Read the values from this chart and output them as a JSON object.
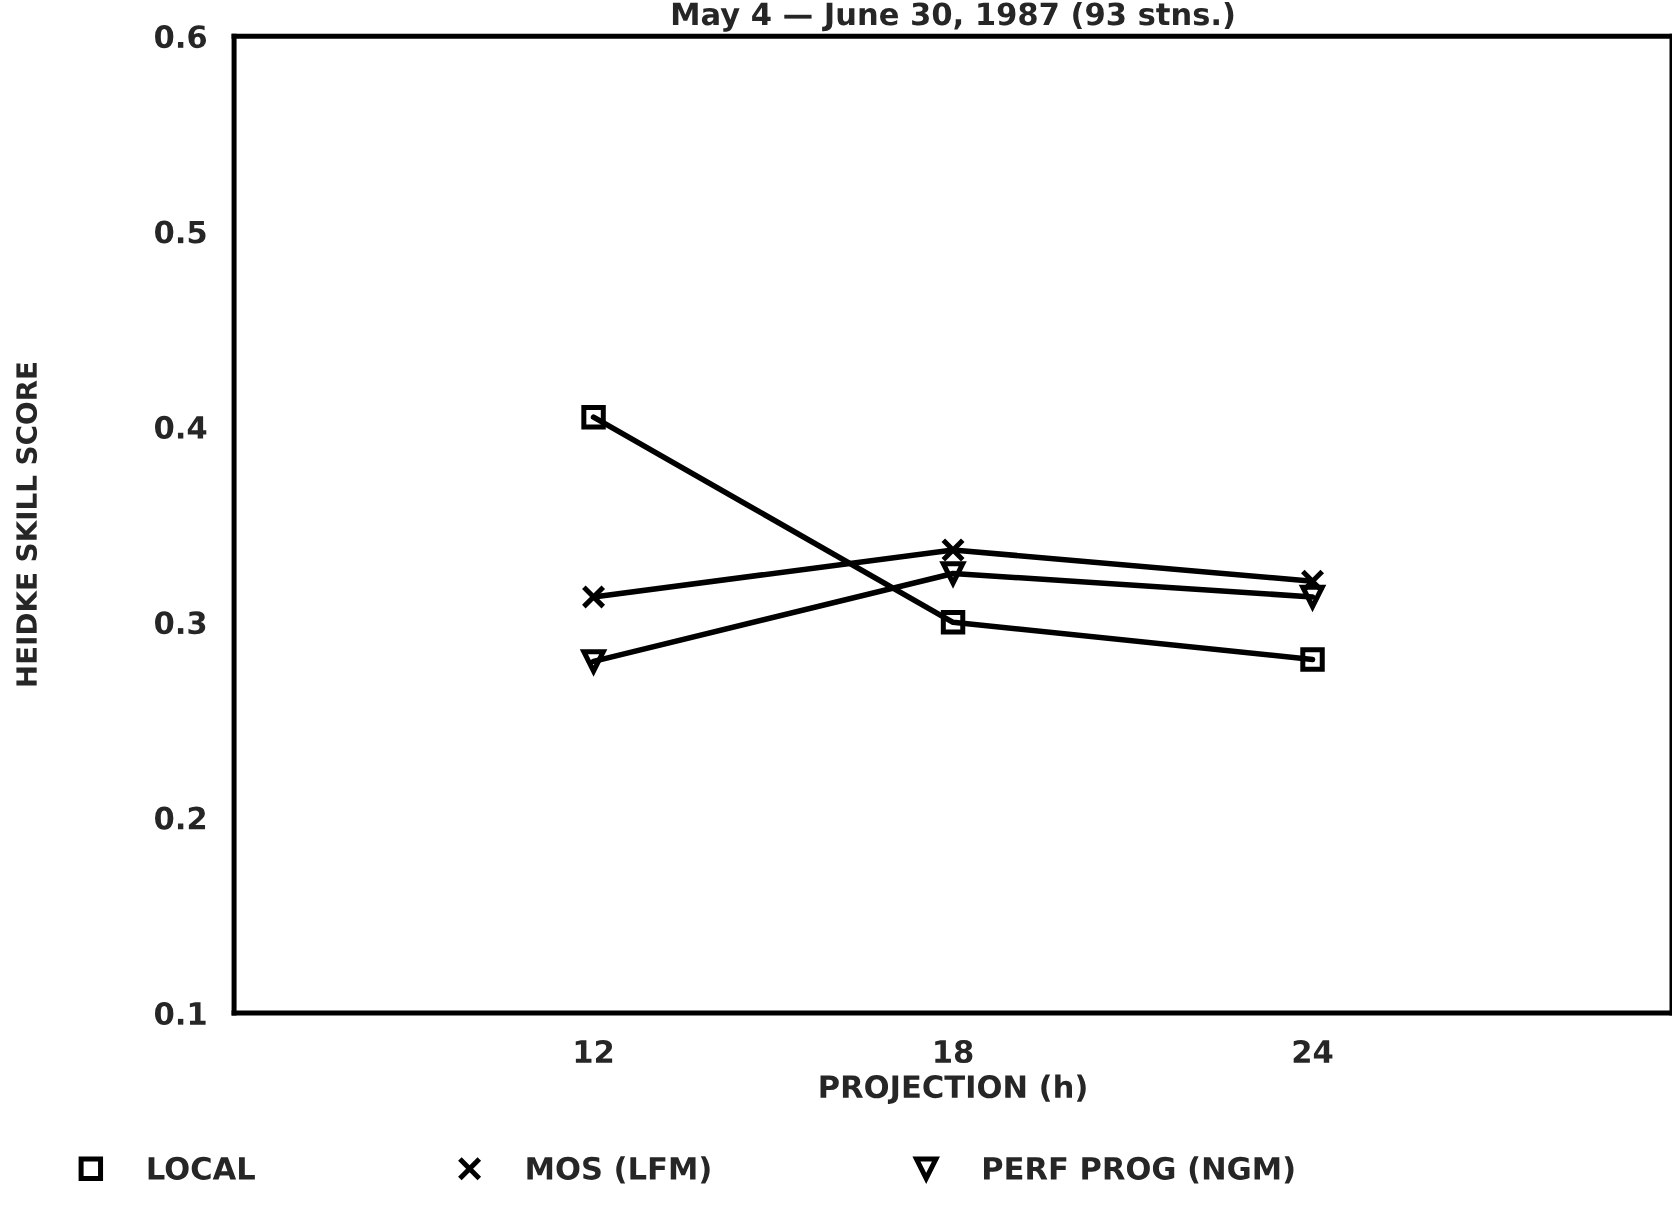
{
  "chart_data": {
    "type": "line",
    "title": "May 4 — June 30, 1987 (93 stns.)",
    "xlabel": "PROJECTION (h)",
    "ylabel": "HEIDKE SKILL SCORE",
    "x": [
      12,
      18,
      24
    ],
    "series": [
      {
        "name": "LOCAL",
        "color": "#000000",
        "marker": "square",
        "values": [
          0.405,
          0.3,
          0.281
        ]
      },
      {
        "name": "MOS (LFM)",
        "color": "#000000",
        "marker": "cross",
        "values": [
          0.313,
          0.337,
          0.321
        ]
      },
      {
        "name": "PERF PROG (NGM)",
        "color": "#000000",
        "marker": "triangle",
        "values": [
          0.28,
          0.325,
          0.313
        ]
      }
    ],
    "xlim": [
      6,
      30
    ],
    "xticks": [
      12,
      18,
      24
    ],
    "ylim": [
      0.1,
      0.6
    ],
    "yticks": [
      0.1,
      0.2,
      0.3,
      0.4,
      0.5,
      0.6
    ],
    "grid": false,
    "legend": "bottom",
    "line_style": "solid"
  }
}
